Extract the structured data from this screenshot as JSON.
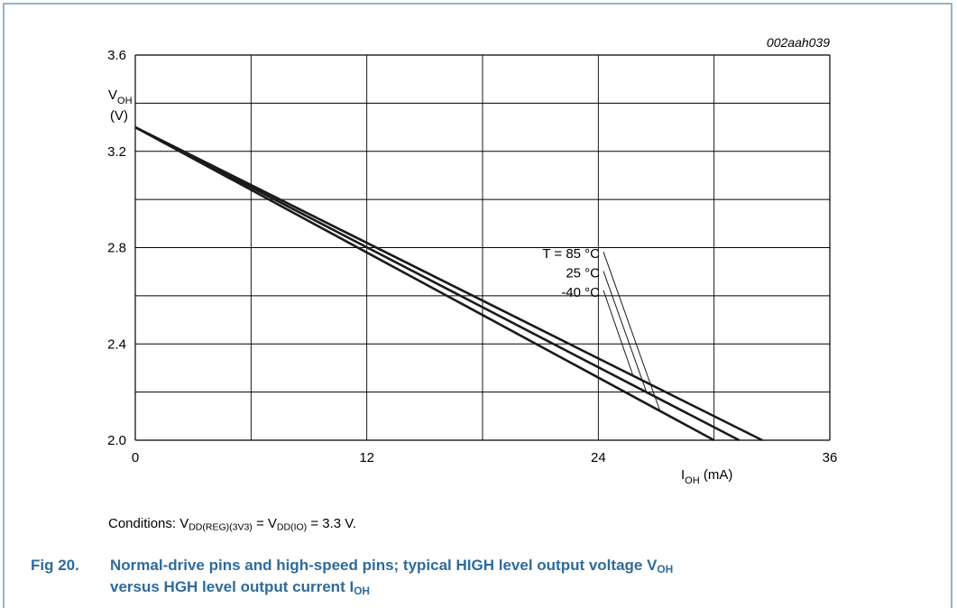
{
  "figure_id": "002aah039",
  "caption": {
    "number": "Fig 20.",
    "line1_text": "Normal-drive pins and high-speed pins; typical HIGH level output voltage V",
    "line1_sub": "OH",
    "line2_text": "versus HGH level output current I",
    "line2_sub": "OH"
  },
  "conditions": {
    "prefix": "Conditions: V",
    "sub1": "DD(REG)(3V3)",
    "mid": " = V",
    "sub2": "DD(IO)",
    "suffix": " = 3.3 V."
  },
  "chart_data": {
    "type": "line",
    "ylabel": {
      "main": "V",
      "sub": "OH",
      "unit": "(V)"
    },
    "xlabel": {
      "main": "I",
      "sub": "OH",
      "unit": " (mA)"
    },
    "xlim": [
      0,
      36
    ],
    "ylim": [
      2.0,
      3.6
    ],
    "x_ticks": [
      "0",
      "12",
      "24",
      "36"
    ],
    "y_ticks": [
      "2.0",
      "2.4",
      "2.8",
      "3.2",
      "3.6"
    ],
    "grid": true,
    "legend_prefix": "T = ",
    "series": [
      {
        "name": "85 °C",
        "x": [
          0,
          30
        ],
        "y": [
          3.3,
          2.0
        ]
      },
      {
        "name": "25 °C",
        "x": [
          0,
          31.3
        ],
        "y": [
          3.3,
          2.0
        ]
      },
      {
        "name": "-40 °C",
        "x": [
          0,
          32.5
        ],
        "y": [
          3.3,
          2.0
        ]
      }
    ],
    "colors": {
      "line": "#1a1a1a",
      "grid": "#000000",
      "caption": "#2e6b9c",
      "border": "#6e9cc4"
    }
  }
}
